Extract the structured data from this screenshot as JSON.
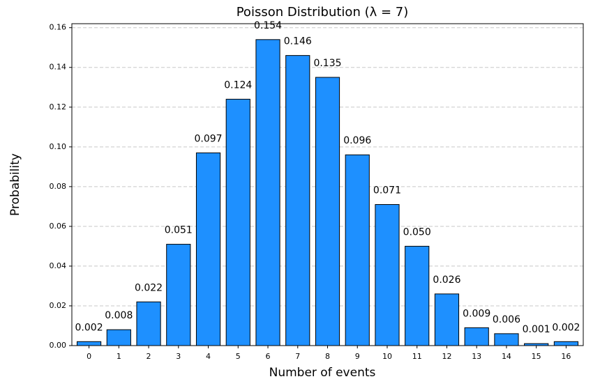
{
  "chart_data": {
    "type": "bar",
    "title": "Poisson Distribution (λ = 7)",
    "x_label": "Number of events",
    "y_label": "Probability",
    "categories": [
      "0",
      "1",
      "2",
      "3",
      "4",
      "5",
      "6",
      "7",
      "8",
      "9",
      "10",
      "11",
      "12",
      "13",
      "14",
      "15",
      "16"
    ],
    "values": [
      0.002,
      0.008,
      0.022,
      0.051,
      0.097,
      0.124,
      0.154,
      0.146,
      0.135,
      0.096,
      0.071,
      0.05,
      0.026,
      0.009,
      0.006,
      0.001,
      0.002
    ],
    "value_labels": [
      "0.002",
      "0.008",
      "0.022",
      "0.051",
      "0.097",
      "0.124",
      "0.154",
      "0.146",
      "0.135",
      "0.096",
      "0.071",
      "0.050",
      "0.026",
      "0.009",
      "0.006",
      "0.001",
      "0.002"
    ],
    "color": "#1e90ff",
    "ylim": [
      0,
      0.162
    ],
    "yticks": [
      {
        "value": 0,
        "label": "0.00"
      },
      0.02,
      0.04,
      0.06,
      0.08,
      {
        "value": 0.1,
        "label": "0.10"
      },
      0.12,
      0.14,
      0.16
    ],
    "grid": true
  }
}
